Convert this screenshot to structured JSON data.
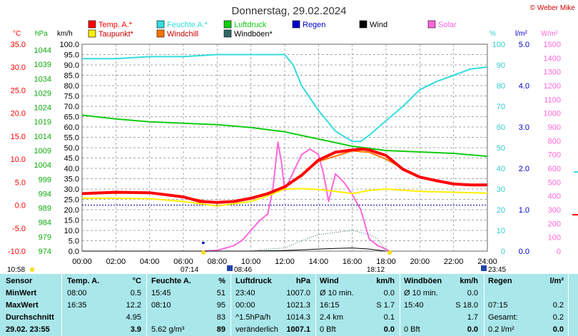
{
  "header": {
    "title": "Donnerstag, 29.02.2024",
    "copyright": "© Weber Mike"
  },
  "legend": [
    {
      "label": "Temp. A.*",
      "color": "#ff0000"
    },
    {
      "label": "Feuchte A.*",
      "color": "#33dddd"
    },
    {
      "label": "Luftdruck",
      "color": "#11cc11"
    },
    {
      "label": "Regen",
      "color": "#0000cc"
    },
    {
      "label": "Wind",
      "color": "#000000"
    },
    {
      "label": "Solar",
      "color": "#ff66dd"
    },
    {
      "label": "Taupunkt*",
      "color": "#ffee00"
    },
    {
      "label": "Windchill",
      "color": "#ff7700"
    },
    {
      "label": "Windböen*",
      "color": "#336666"
    }
  ],
  "axis_units": {
    "temp": "°C",
    "pressure": "hPa",
    "wind": "km/h",
    "humidity": "%",
    "rain": "l/m²",
    "solar": "W/m²"
  },
  "axes": {
    "temp": [
      "35.0",
      "30.0",
      "25.0",
      "20.0",
      "15.0",
      "10.0",
      "5.0",
      "0.0",
      "-5.0",
      "-10.0"
    ],
    "pressure": [
      "1044",
      "1039",
      "1034",
      "1029",
      "1024",
      "1019",
      "1014",
      "1009",
      "1004",
      "999",
      "994",
      "989",
      "984",
      "979",
      "974"
    ],
    "wind": [
      "100.0",
      "95.0",
      "90.0",
      "85.0",
      "80.0",
      "75.0",
      "70.0",
      "65.0",
      "60.0",
      "55.0",
      "50.0",
      "45.0",
      "40.0",
      "35.0",
      "30.0",
      "25.0",
      "20.0",
      "15.0",
      "10.0",
      "5.0",
      "0.0"
    ],
    "humidity": [
      "100",
      "90",
      "80",
      "70",
      "60",
      "50",
      "40",
      "30",
      "20",
      "10",
      "0"
    ],
    "rain": [
      "5.0",
      "4.0",
      "3.0",
      "2.0",
      "1.0",
      "0.0"
    ],
    "solar": [
      "1500",
      "1400",
      "1300",
      "1200",
      "1100",
      "1000",
      "900",
      "800",
      "700",
      "600",
      "500",
      "400",
      "300",
      "200",
      "100",
      "0"
    ],
    "time": [
      "00:00",
      "02:00",
      "04:00",
      "06:00",
      "08:00",
      "10:00",
      "12:00",
      "14:00",
      "16:00",
      "18:00",
      "20:00",
      "22:00",
      "24:00"
    ]
  },
  "sun": {
    "last_update": "10:58",
    "sunrise": "07:14",
    "dawn": "08:46",
    "sunset": "18:12",
    "dusk": "23:45"
  },
  "colors": {
    "grid": "#888888",
    "stats_bg": "#a9e7eb"
  },
  "chart_data": {
    "type": "line",
    "title": "Donnerstag, 29.02.2024",
    "x_range_hours": [
      0,
      24
    ],
    "series": [
      {
        "name": "Temp. A.*",
        "unit": "°C",
        "color": "#ff0000",
        "x": [
          0,
          2,
          4,
          6,
          7,
          8,
          9,
          10,
          11,
          12,
          13,
          14,
          15,
          16,
          16.6,
          17,
          18,
          19,
          20,
          21,
          22,
          23,
          24
        ],
        "y": [
          2.5,
          2.8,
          2.7,
          1.8,
          0.8,
          0.6,
          0.8,
          1.5,
          2.5,
          4,
          6.5,
          9.8,
          11.5,
          12.0,
          12.2,
          12.0,
          10.8,
          7.8,
          6.1,
          5.3,
          4.6,
          4.4,
          4.4
        ]
      },
      {
        "name": "Taupunkt*",
        "unit": "°C",
        "color": "#ffee00",
        "x": [
          0,
          2,
          4,
          6,
          8,
          10,
          11,
          12,
          13,
          14,
          15,
          16,
          17,
          18,
          20,
          22,
          24
        ],
        "y": [
          1.5,
          1.5,
          1.4,
          0.8,
          -0.2,
          0.8,
          2.0,
          3.5,
          3.6,
          3.4,
          3.0,
          2.5,
          3.2,
          3.5,
          3.0,
          2.8,
          2.6
        ]
      },
      {
        "name": "Windchill",
        "unit": "°C",
        "color": "#ff7700",
        "x": [
          0,
          4,
          6,
          8,
          10,
          12,
          14,
          16,
          17,
          18,
          20,
          22,
          24
        ],
        "y": [
          2.5,
          2.7,
          1.8,
          0.4,
          1.4,
          3.8,
          9.5,
          11.8,
          11.5,
          10.0,
          6.0,
          4.6,
          4.4
        ]
      },
      {
        "name": "Feuchte A.*",
        "unit": "%",
        "color": "#33dddd",
        "x": [
          0,
          2,
          4,
          6,
          8,
          10,
          12,
          12.5,
          13,
          14,
          15,
          16,
          16.5,
          17,
          18,
          19,
          20,
          21,
          22,
          23,
          24
        ],
        "y": [
          93,
          93,
          94,
          94,
          95,
          95,
          95,
          90,
          80,
          68,
          58,
          53,
          53,
          56,
          63,
          70,
          78,
          82,
          85,
          88,
          89
        ]
      },
      {
        "name": "Luftdruck",
        "unit": "hPa",
        "color": "#11cc11",
        "x": [
          0,
          2,
          4,
          6,
          8,
          10,
          12,
          14,
          16,
          18,
          20,
          22,
          24
        ],
        "y": [
          1021.3,
          1020,
          1019,
          1018.5,
          1018,
          1017,
          1015.5,
          1013,
          1010.5,
          1009,
          1008.5,
          1008,
          1007
        ]
      },
      {
        "name": "Solar",
        "unit": "W/m²",
        "color": "#ff66dd",
        "x": [
          7.2,
          8,
          9,
          9.5,
          10,
          10.5,
          11,
          11.3,
          11.6,
          11.8,
          12,
          12.5,
          13,
          13.5,
          14,
          14.3,
          14.6,
          15,
          15.5,
          16,
          16.5,
          17,
          17.5,
          18,
          18.2
        ],
        "y": [
          0,
          5,
          40,
          80,
          150,
          220,
          270,
          450,
          790,
          650,
          440,
          570,
          700,
          740,
          700,
          560,
          360,
          560,
          500,
          410,
          300,
          90,
          40,
          15,
          0
        ]
      },
      {
        "name": "Windböen*",
        "unit": "km/h",
        "color": "#336666",
        "x": [
          0,
          6,
          8,
          10,
          11,
          12,
          13,
          14,
          15,
          16,
          16.5,
          17,
          17.5,
          18
        ],
        "y": [
          0,
          0,
          0,
          0,
          1,
          1.5,
          5,
          8,
          9,
          10,
          9,
          8,
          6,
          0
        ]
      },
      {
        "name": "Wind",
        "unit": "km/h",
        "color": "#000000",
        "x": [
          0,
          10,
          12,
          13,
          14,
          15,
          16,
          17,
          18
        ],
        "y": [
          0,
          0,
          0.3,
          0.6,
          1.0,
          1.3,
          1.5,
          1.0,
          0
        ]
      },
      {
        "name": "Regen",
        "unit": "l/m²",
        "color": "#0000cc",
        "x": [
          7.1,
          7.25
        ],
        "y": [
          0.2,
          0.2
        ]
      }
    ]
  },
  "stats": {
    "headers": [
      "Sensor",
      "Temp. A.",
      "°C",
      "Feuchte A.",
      "%",
      "Luftdruck",
      "hPa",
      "Wind",
      "km/h",
      "Windböen",
      "km/h",
      "Regen",
      "l/m²"
    ],
    "rows": [
      {
        "label": "MinWert",
        "c": [
          "08:00",
          "0.5",
          "15:45",
          "51",
          "23:40",
          "1007.0",
          "Ø 10 min.",
          "0.0",
          "Ø 10 min.",
          "0.0",
          "",
          ""
        ]
      },
      {
        "label": "MaxWert",
        "c": [
          "16:35",
          "12.2",
          "08:10",
          "95",
          "00:00",
          "1021.3",
          "16:15",
          "S 1.7",
          "15:40",
          "S 18.0",
          "07:15",
          "0.2"
        ]
      },
      {
        "label": "Durchschnitt",
        "c": [
          "",
          "4.95",
          "",
          "83",
          "^1.5hPa/h",
          "1014.3",
          "2.4 km",
          "0.1",
          "",
          "1.7",
          "Gesamt:",
          "0.2"
        ]
      },
      {
        "label": "29.02. 23:55",
        "c": [
          "",
          "3.9",
          "5.62 g/m³",
          "89",
          "veränderlich",
          "1007.1",
          "0 Bft",
          "0.0",
          "0 Bft",
          "0.0",
          "0.2 l/m²",
          "0.0"
        ]
      }
    ]
  }
}
